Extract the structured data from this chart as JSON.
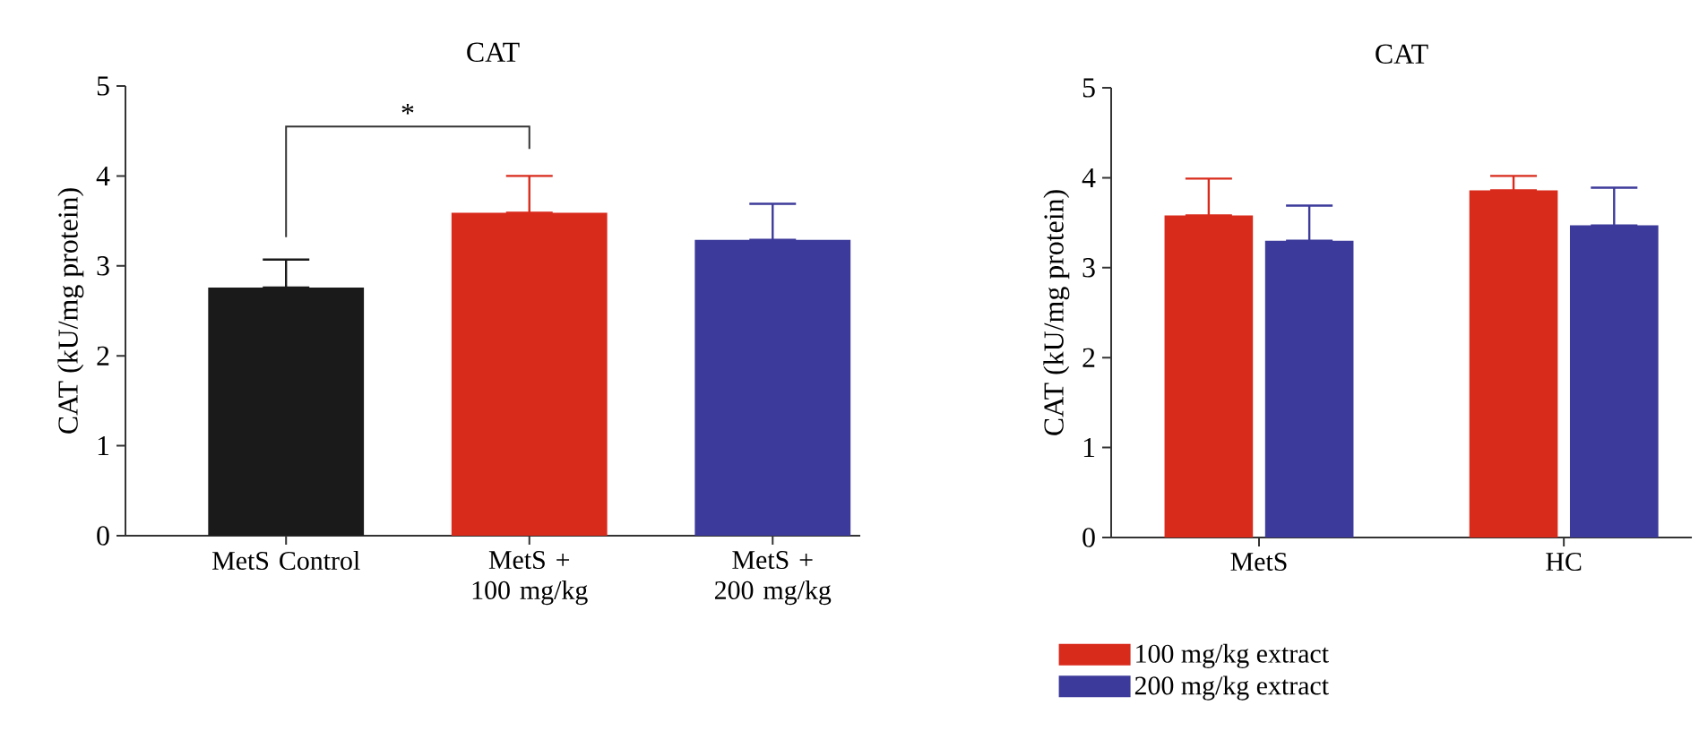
{
  "chart_data": [
    {
      "type": "bar",
      "title": "CAT",
      "ylabel": "CAT (kU/mg protein)",
      "categories": [
        "MetS Control",
        "MetS + 100 mg/kg",
        "MetS + 200 mg/kg"
      ],
      "values": [
        2.76,
        3.59,
        3.29
      ],
      "colors": [
        "#1a1a1a",
        "#d92b1c",
        "#3c3a9a"
      ],
      "errors": [
        [
          2.76,
          3.07
        ],
        [
          3.59,
          4.0
        ],
        [
          3.29,
          3.69
        ]
      ],
      "ylim": [
        0,
        5
      ],
      "yticks": [
        0,
        1,
        2,
        3,
        4,
        5
      ],
      "annotations": [
        "*"
      ]
    },
    {
      "type": "bar",
      "title": "CAT",
      "ylabel": "CAT (kU/mg protein)",
      "categories": [
        "MetS",
        "HC"
      ],
      "series": [
        {
          "name": "100 mg/kg extract",
          "color": "#d92b1c",
          "values": [
            3.58,
            3.86
          ],
          "errors": [
            [
              3.58,
              3.99
            ],
            [
              3.86,
              4.02
            ]
          ]
        },
        {
          "name": "200 mg/kg extract",
          "color": "#3c3a9a",
          "values": [
            3.3,
            3.47
          ],
          "errors": [
            [
              3.3,
              3.69
            ],
            [
              3.47,
              3.89
            ]
          ]
        }
      ],
      "ylim": [
        0,
        5
      ],
      "yticks": [
        0,
        1,
        2,
        3,
        4,
        5
      ],
      "legend": "bottom"
    }
  ]
}
